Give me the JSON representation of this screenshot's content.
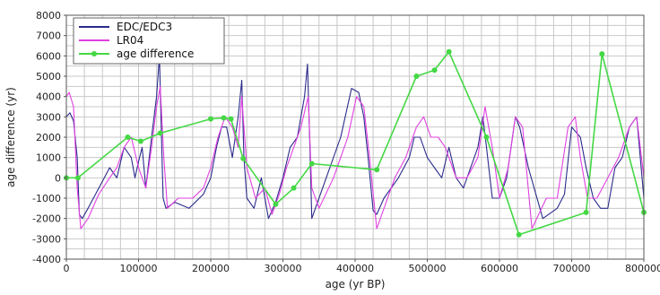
{
  "chart_data": {
    "type": "line",
    "title": "",
    "xlabel": "age (yr BP)",
    "ylabel": "age difference (yr)",
    "xlim": [
      0,
      800000
    ],
    "ylim": [
      -4000,
      8000
    ],
    "x_ticks": [
      0,
      100000,
      200000,
      300000,
      400000,
      500000,
      600000,
      700000,
      800000
    ],
    "x_tick_labels": [
      "0",
      "100000",
      "200000",
      "300000",
      "400000",
      "500000",
      "600000",
      "700000",
      "800000"
    ],
    "y_ticks": [
      -4000,
      -3000,
      -2000,
      -1000,
      0,
      1000,
      2000,
      3000,
      4000,
      5000,
      6000,
      7000,
      8000
    ],
    "y_tick_labels": [
      "-4000",
      "-3000",
      "-2000",
      "-1000",
      "0",
      "1000",
      "2000",
      "3000",
      "4000",
      "5000",
      "6000",
      "7000",
      "8000"
    ],
    "grid": true,
    "legend_position": "top-left",
    "series": [
      {
        "name": "EDC/EDC3",
        "color": "#2b2b8c",
        "marker": "none",
        "x": [
          0,
          5000,
          10000,
          15000,
          18000,
          22000,
          30000,
          45000,
          60000,
          70000,
          80000,
          90000,
          95000,
          100000,
          105000,
          110000,
          118000,
          125000,
          129000,
          131000,
          134000,
          138000,
          150000,
          170000,
          190000,
          200000,
          208000,
          215000,
          222000,
          230000,
          238000,
          243000,
          246000,
          250000,
          260000,
          270000,
          280000,
          290000,
          300000,
          310000,
          320000,
          330000,
          334000,
          337000,
          340000,
          345000,
          360000,
          380000,
          395000,
          405000,
          412000,
          418000,
          425000,
          430000,
          440000,
          460000,
          475000,
          482000,
          490000,
          500000,
          510000,
          520000,
          530000,
          540000,
          550000,
          560000,
          570000,
          577000,
          582000,
          590000,
          600000,
          610000,
          618000,
          622000,
          628000,
          640000,
          660000,
          680000,
          690000,
          700000,
          712000,
          720000,
          730000,
          740000,
          750000,
          760000,
          770000,
          780000,
          790000,
          800000
        ],
        "y": [
          3000,
          3200,
          2800,
          1000,
          -1800,
          -2000,
          -1500,
          -500,
          500,
          0,
          1500,
          1000,
          0,
          800,
          1500,
          -500,
          2000,
          4000,
          6000,
          3000,
          -1000,
          -1500,
          -1200,
          -1500,
          -800,
          0,
          1500,
          2500,
          2500,
          1000,
          3000,
          4800,
          1000,
          -1000,
          -1500,
          0,
          -2000,
          -1200,
          0,
          1500,
          2000,
          4000,
          5600,
          2000,
          -2000,
          -1500,
          0,
          2000,
          4400,
          4200,
          3000,
          1000,
          -1600,
          -1800,
          -1000,
          0,
          1000,
          2000,
          2000,
          1000,
          500,
          0,
          1500,
          0,
          -500,
          500,
          1500,
          3000,
          1500,
          -1000,
          -1000,
          0,
          2000,
          3000,
          2500,
          500,
          -2000,
          -1500,
          -800,
          2500,
          2000,
          500,
          -1000,
          -1500,
          -1500,
          500,
          1000,
          2500,
          3000,
          -1000
        ]
      },
      {
        "name": "LR04",
        "color": "#e040e0",
        "marker": "none",
        "x": [
          0,
          4000,
          10000,
          15000,
          20000,
          30000,
          45000,
          60000,
          70000,
          80000,
          90000,
          100000,
          110000,
          118000,
          125000,
          130000,
          135000,
          140000,
          155000,
          175000,
          190000,
          200000,
          210000,
          220000,
          230000,
          238000,
          243000,
          250000,
          262000,
          275000,
          285000,
          295000,
          305000,
          315000,
          325000,
          335000,
          340000,
          350000,
          370000,
          390000,
          402000,
          412000,
          420000,
          430000,
          440000,
          455000,
          470000,
          485000,
          495000,
          505000,
          515000,
          525000,
          540000,
          555000,
          570000,
          580000,
          590000,
          600000,
          612000,
          622000,
          632000,
          645000,
          665000,
          680000,
          695000,
          705000,
          712000,
          722000,
          735000,
          750000,
          765000,
          780000,
          790000,
          800000
        ],
        "y": [
          4000,
          4200,
          3500,
          -500,
          -2500,
          -2000,
          -800,
          0,
          500,
          1500,
          2000,
          500,
          -500,
          1500,
          3500,
          4500,
          1000,
          -1500,
          -1000,
          -1000,
          -500,
          500,
          2000,
          3000,
          2500,
          1500,
          4000,
          500,
          -1000,
          -500,
          -1800,
          -800,
          500,
          1500,
          2500,
          4000,
          -500,
          -1500,
          0,
          2000,
          4000,
          3500,
          1000,
          -2500,
          -1500,
          0,
          1000,
          2500,
          3000,
          2000,
          2000,
          1500,
          0,
          0,
          1000,
          3500,
          1500,
          -1000,
          500,
          3000,
          2500,
          -2500,
          -1000,
          -1000,
          2500,
          3000,
          1000,
          -1000,
          -1000,
          0,
          1000,
          2500,
          3000,
          0
        ]
      },
      {
        "name": "age difference",
        "color": "#44d844",
        "marker": "circle",
        "x": [
          0,
          16000,
          85000,
          103000,
          130000,
          200000,
          218000,
          228000,
          245000,
          290000,
          315000,
          340000,
          430000,
          485000,
          510000,
          530000,
          582000,
          627000,
          720000,
          742000,
          800000
        ],
        "y": [
          0,
          0,
          2000,
          1800,
          2200,
          2900,
          2950,
          2900,
          950,
          -1300,
          -500,
          700,
          400,
          5000,
          5300,
          6200,
          2000,
          -2800,
          -1700,
          6100,
          -1700
        ]
      }
    ]
  }
}
